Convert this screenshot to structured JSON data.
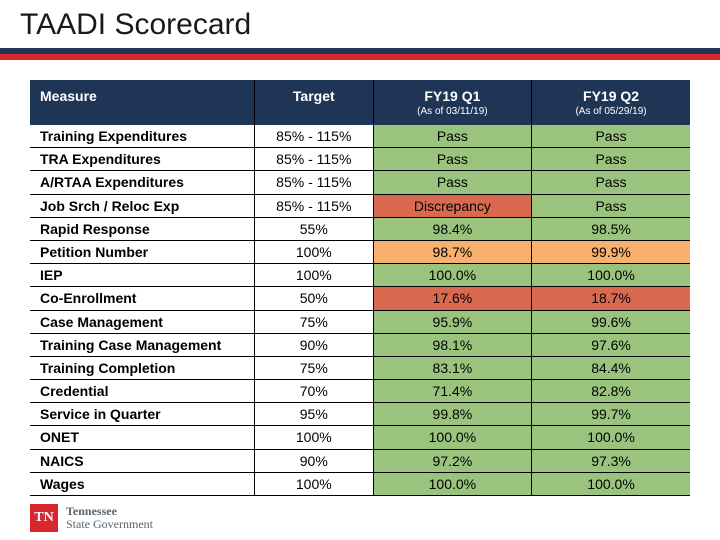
{
  "title": "TAADI Scorecard",
  "colors": {
    "navy": "#1f3556",
    "red": "#d8272d",
    "pass_bg": "#9ac47e",
    "warn_bg": "#f7b06d",
    "fail_bg": "#d96a4f",
    "white": "#ffffff",
    "text": "#000000"
  },
  "header": {
    "measure": "Measure",
    "target": "Target",
    "q1": "FY19 Q1",
    "q1_sub": "(As of 03/11/19)",
    "q2": "FY19 Q2",
    "q2_sub": "(As of 05/29/19)"
  },
  "rows": [
    {
      "measure": "Training Expenditures",
      "target": "85% - 115%",
      "q1": "Pass",
      "q1_bg": "#9ac47e",
      "q2": "Pass",
      "q2_bg": "#9ac47e"
    },
    {
      "measure": "TRA Expenditures",
      "target": "85% - 115%",
      "q1": "Pass",
      "q1_bg": "#9ac47e",
      "q2": "Pass",
      "q2_bg": "#9ac47e"
    },
    {
      "measure": "A/RTAA Expenditures",
      "target": "85% - 115%",
      "q1": "Pass",
      "q1_bg": "#9ac47e",
      "q2": "Pass",
      "q2_bg": "#9ac47e"
    },
    {
      "measure": "Job Srch / Reloc Exp",
      "target": "85% - 115%",
      "q1": "Discrepancy",
      "q1_bg": "#d96a4f",
      "q2": "Pass",
      "q2_bg": "#9ac47e"
    },
    {
      "measure": "Rapid Response",
      "target": "55%",
      "q1": "98.4%",
      "q1_bg": "#9ac47e",
      "q2": "98.5%",
      "q2_bg": "#9ac47e"
    },
    {
      "measure": "Petition Number",
      "target": "100%",
      "q1": "98.7%",
      "q1_bg": "#f7b06d",
      "q2": "99.9%",
      "q2_bg": "#f7b06d"
    },
    {
      "measure": "IEP",
      "target": "100%",
      "q1": "100.0%",
      "q1_bg": "#9ac47e",
      "q2": "100.0%",
      "q2_bg": "#9ac47e"
    },
    {
      "measure": "Co-Enrollment",
      "target": "50%",
      "q1": "17.6%",
      "q1_bg": "#d96a4f",
      "q2": "18.7%",
      "q2_bg": "#d96a4f"
    },
    {
      "measure": "Case Management",
      "target": "75%",
      "q1": "95.9%",
      "q1_bg": "#9ac47e",
      "q2": "99.6%",
      "q2_bg": "#9ac47e"
    },
    {
      "measure": "Training Case Management",
      "target": "90%",
      "q1": "98.1%",
      "q1_bg": "#9ac47e",
      "q2": "97.6%",
      "q2_bg": "#9ac47e"
    },
    {
      "measure": "Training Completion",
      "target": "75%",
      "q1": "83.1%",
      "q1_bg": "#9ac47e",
      "q2": "84.4%",
      "q2_bg": "#9ac47e"
    },
    {
      "measure": "Credential",
      "target": "70%",
      "q1": "71.4%",
      "q1_bg": "#9ac47e",
      "q2": "82.8%",
      "q2_bg": "#9ac47e"
    },
    {
      "measure": "Service in Quarter",
      "target": "95%",
      "q1": "99.8%",
      "q1_bg": "#9ac47e",
      "q2": "99.7%",
      "q2_bg": "#9ac47e"
    },
    {
      "measure": "ONET",
      "target": "100%",
      "q1": "100.0%",
      "q1_bg": "#9ac47e",
      "q2": "100.0%",
      "q2_bg": "#9ac47e"
    },
    {
      "measure": "NAICS",
      "target": "90%",
      "q1": "97.2%",
      "q1_bg": "#9ac47e",
      "q2": "97.3%",
      "q2_bg": "#9ac47e"
    },
    {
      "measure": "Wages",
      "target": "100%",
      "q1": "100.0%",
      "q1_bg": "#9ac47e",
      "q2": "100.0%",
      "q2_bg": "#9ac47e"
    }
  ],
  "footer": {
    "logo_text": "TN",
    "line1": "Tennessee",
    "line2": "State Government"
  }
}
